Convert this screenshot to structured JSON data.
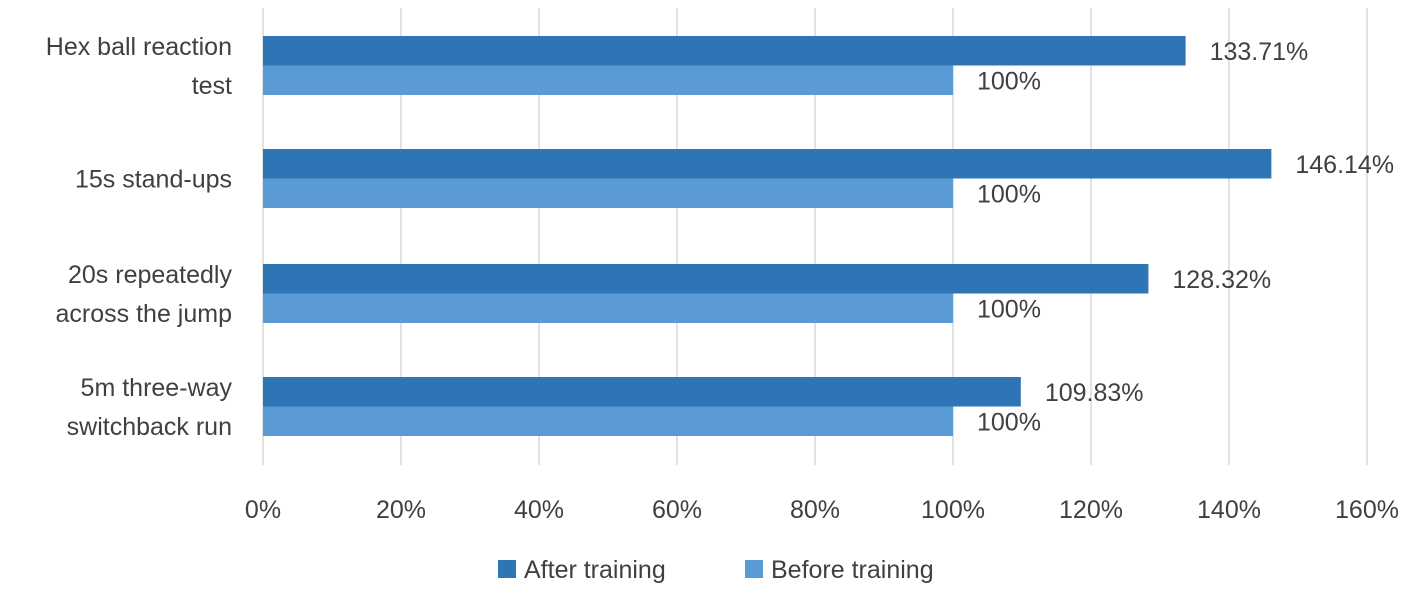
{
  "chart_data": {
    "type": "bar",
    "orientation": "horizontal",
    "categories": [
      [
        "Hex ball reaction",
        "test"
      ],
      [
        "15s stand-ups"
      ],
      [
        "20s repeatedly",
        "across the jump"
      ],
      [
        "5m three-way",
        "switchback run"
      ]
    ],
    "series": [
      {
        "name": "After training",
        "values": [
          133.71,
          146.14,
          128.32,
          109.83
        ],
        "labels": [
          "133.71%",
          "146.14%",
          "128.32%",
          "109.83%"
        ],
        "color": "#2e75b6"
      },
      {
        "name": "Before training",
        "values": [
          100,
          100,
          100,
          100
        ],
        "labels": [
          "100%",
          "100%",
          "100%",
          "100%"
        ],
        "color": "#5b9bd5"
      }
    ],
    "xlim": [
      0,
      160
    ],
    "xticks": [
      "0%",
      "20%",
      "40%",
      "60%",
      "80%",
      "100%",
      "120%",
      "140%",
      "160%"
    ],
    "grid": true,
    "legend_position": "bottom"
  }
}
